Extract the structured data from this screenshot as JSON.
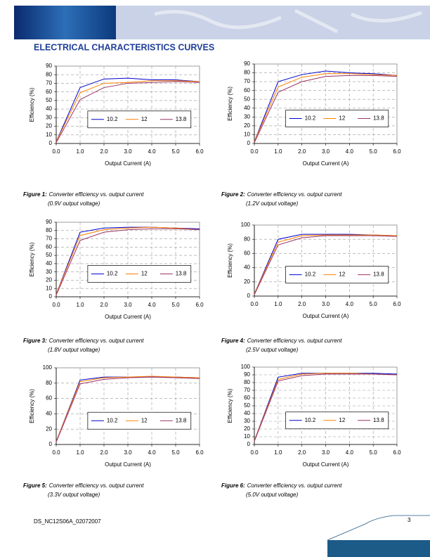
{
  "header": {
    "title": "ELECTRICAL CHARACTERISTICS CURVES"
  },
  "footer": {
    "doc_id": "DS_NC12S06A_02072007",
    "page": "3"
  },
  "figures": [
    {
      "label": "Figure 1:",
      "caption": "Converter efficiency vs. output current",
      "note": "(0.9V output voltage)"
    },
    {
      "label": "Figure 2:",
      "caption": "Converter efficiency vs. output current",
      "note": "(1.2V output voltage)"
    },
    {
      "label": "Figure 3:",
      "caption": "Converter efficiency vs. output current",
      "note": "(1.8V output voltage)"
    },
    {
      "label": "Figure 4:",
      "caption": "Converter efficiency vs. output current",
      "note": "(2.5V output voltage)"
    },
    {
      "label": "Figure 5:",
      "caption": "Converter efficiency vs. output current",
      "note": "(3.3V output voltage)"
    },
    {
      "label": "Figure 6:",
      "caption": "Converter efficiency vs. output current",
      "note": "(5.0V output voltage)"
    }
  ],
  "chart_data": [
    {
      "type": "line",
      "x_label": "Output Current (A)",
      "y_label": "Efficiency (%)",
      "grid": true,
      "x": [
        0,
        1,
        2,
        3,
        4,
        5,
        6
      ],
      "xlim": [
        0,
        6
      ],
      "xticks": [
        {
          "value": 0,
          "label": "0.0"
        },
        {
          "value": 1,
          "label": "1.0"
        },
        {
          "value": 2,
          "label": "2.0"
        },
        {
          "value": 3,
          "label": "3.0"
        },
        {
          "value": 4,
          "label": "4.0"
        },
        {
          "value": 5,
          "label": "5.0"
        },
        {
          "value": 6,
          "label": "6.0"
        }
      ],
      "ylim": [
        0,
        90
      ],
      "yticks": [
        0,
        10,
        20,
        30,
        40,
        50,
        60,
        70,
        80,
        90
      ],
      "series": [
        {
          "name": "10.2",
          "color": "#0000cc",
          "values": [
            2,
            65,
            75,
            76,
            74,
            74,
            72
          ]
        },
        {
          "name": "12",
          "color": "#ff8000",
          "values": [
            2,
            59,
            70,
            71,
            73,
            73,
            72
          ]
        },
        {
          "name": "13.8",
          "color": "#993366",
          "values": [
            1,
            51,
            65,
            70,
            71,
            72,
            71
          ]
        }
      ]
    },
    {
      "type": "line",
      "x_label": "Output Current (A)",
      "y_label": "Efficiency (%)",
      "grid": true,
      "x": [
        0,
        1,
        2,
        3,
        4,
        5,
        6
      ],
      "xlim": [
        0,
        6
      ],
      "xticks": [
        {
          "value": 0,
          "label": "0.0"
        },
        {
          "value": 1,
          "label": "1.0"
        },
        {
          "value": 2,
          "label": "2.0"
        },
        {
          "value": 3,
          "label": "3.0"
        },
        {
          "value": 4,
          "label": "4.0"
        },
        {
          "value": 5,
          "label": "5.0"
        },
        {
          "value": 6,
          "label": "6.0"
        }
      ],
      "ylim": [
        0,
        90
      ],
      "yticks": [
        0,
        10,
        20,
        30,
        40,
        50,
        60,
        70,
        80,
        90
      ],
      "series": [
        {
          "name": "10.2",
          "color": "#0000cc",
          "values": [
            2,
            70,
            78,
            82,
            80,
            79,
            77
          ]
        },
        {
          "name": "12",
          "color": "#ff8000",
          "values": [
            2,
            64,
            75,
            79,
            79,
            78,
            77
          ]
        },
        {
          "name": "13.8",
          "color": "#993366",
          "values": [
            1,
            58,
            70,
            76,
            77,
            77,
            76
          ]
        }
      ]
    },
    {
      "type": "line",
      "x_label": "Output Current (A)",
      "y_label": "Efficiency (%)",
      "grid": true,
      "x": [
        0,
        1,
        2,
        3,
        4,
        5,
        6
      ],
      "xlim": [
        0,
        6
      ],
      "xticks": [
        {
          "value": 0,
          "label": "0.0"
        },
        {
          "value": 1,
          "label": "1.0"
        },
        {
          "value": 2,
          "label": "2.0"
        },
        {
          "value": 3,
          "label": "3.0"
        },
        {
          "value": 4,
          "label": "4.0"
        },
        {
          "value": 5,
          "label": "5.0"
        },
        {
          "value": 6,
          "label": "6.0"
        }
      ],
      "ylim": [
        0,
        90
      ],
      "yticks": [
        0,
        10,
        20,
        30,
        40,
        50,
        60,
        70,
        80,
        90
      ],
      "series": [
        {
          "name": "10.2",
          "color": "#0000cc",
          "values": [
            3,
            78,
            83,
            84,
            84,
            83,
            82
          ]
        },
        {
          "name": "12",
          "color": "#ff8000",
          "values": [
            3,
            74,
            81,
            83,
            84,
            83,
            81
          ]
        },
        {
          "name": "13.8",
          "color": "#993366",
          "values": [
            2,
            68,
            78,
            81,
            82,
            82,
            81
          ]
        }
      ]
    },
    {
      "type": "line",
      "x_label": "Output Current (A)",
      "y_label": "Efficiency (%)",
      "grid": true,
      "x": [
        0,
        1,
        2,
        3,
        4,
        5,
        6
      ],
      "xlim": [
        0,
        6
      ],
      "xticks": [
        {
          "value": 0,
          "label": "0.0"
        },
        {
          "value": 1,
          "label": "1.0"
        },
        {
          "value": 2,
          "label": "2.0"
        },
        {
          "value": 3,
          "label": "3.0"
        },
        {
          "value": 4,
          "label": "4.0"
        },
        {
          "value": 5,
          "label": "5.0"
        },
        {
          "value": 6,
          "label": "6.0"
        }
      ],
      "ylim": [
        0,
        100
      ],
      "yticks": [
        0,
        20,
        40,
        60,
        80,
        100
      ],
      "series": [
        {
          "name": "10.2",
          "color": "#0000cc",
          "values": [
            3,
            80,
            87,
            87,
            87,
            86,
            85
          ]
        },
        {
          "name": "12",
          "color": "#ff8000",
          "values": [
            3,
            76,
            85,
            86,
            86,
            86,
            85
          ]
        },
        {
          "name": "13.8",
          "color": "#993366",
          "values": [
            2,
            72,
            82,
            85,
            85,
            85,
            84
          ]
        }
      ]
    },
    {
      "type": "line",
      "x_label": "Output Current (A)",
      "y_label": "Efficiency (%)",
      "grid": true,
      "x": [
        0,
        1,
        2,
        3,
        4,
        5,
        6
      ],
      "xlim": [
        0,
        6
      ],
      "xticks": [
        {
          "value": 0,
          "label": "0.0"
        },
        {
          "value": 1,
          "label": "1.0"
        },
        {
          "value": 2,
          "label": "2.0"
        },
        {
          "value": 3,
          "label": "3.0"
        },
        {
          "value": 4,
          "label": "4.0"
        },
        {
          "value": 5,
          "label": "5.0"
        },
        {
          "value": 6,
          "label": "6.0"
        }
      ],
      "ylim": [
        0,
        100
      ],
      "yticks": [
        0,
        20,
        40,
        60,
        80,
        100
      ],
      "series": [
        {
          "name": "10.2",
          "color": "#0000cc",
          "values": [
            4,
            84,
            88,
            88,
            88,
            88,
            87
          ]
        },
        {
          "name": "12",
          "color": "#ff8000",
          "values": [
            4,
            82,
            87,
            88,
            89,
            88,
            87
          ]
        },
        {
          "name": "13.8",
          "color": "#993366",
          "values": [
            3,
            79,
            85,
            87,
            88,
            87,
            86
          ]
        }
      ]
    },
    {
      "type": "line",
      "x_label": "Output Current (A)",
      "y_label": "Efficiency (%)",
      "grid": true,
      "x": [
        0,
        1,
        2,
        3,
        4,
        5,
        6
      ],
      "xlim": [
        0,
        6
      ],
      "xticks": [
        {
          "value": 0,
          "label": "0.0"
        },
        {
          "value": 1,
          "label": "1.0"
        },
        {
          "value": 2,
          "label": "2.0"
        },
        {
          "value": 3,
          "label": "3.0"
        },
        {
          "value": 4,
          "label": "4.0"
        },
        {
          "value": 5,
          "label": "5.0"
        },
        {
          "value": 6,
          "label": "6.0"
        }
      ],
      "ylim": [
        0,
        100
      ],
      "yticks": [
        0,
        10,
        20,
        30,
        40,
        50,
        60,
        70,
        80,
        90,
        100
      ],
      "series": [
        {
          "name": "10.2",
          "color": "#0000cc",
          "values": [
            5,
            87,
            92,
            92,
            92,
            92,
            91
          ]
        },
        {
          "name": "12",
          "color": "#ff8000",
          "values": [
            5,
            84,
            91,
            92,
            92,
            91,
            90
          ]
        },
        {
          "name": "13.8",
          "color": "#993366",
          "values": [
            4,
            82,
            89,
            91,
            91,
            91,
            90
          ]
        }
      ]
    }
  ]
}
